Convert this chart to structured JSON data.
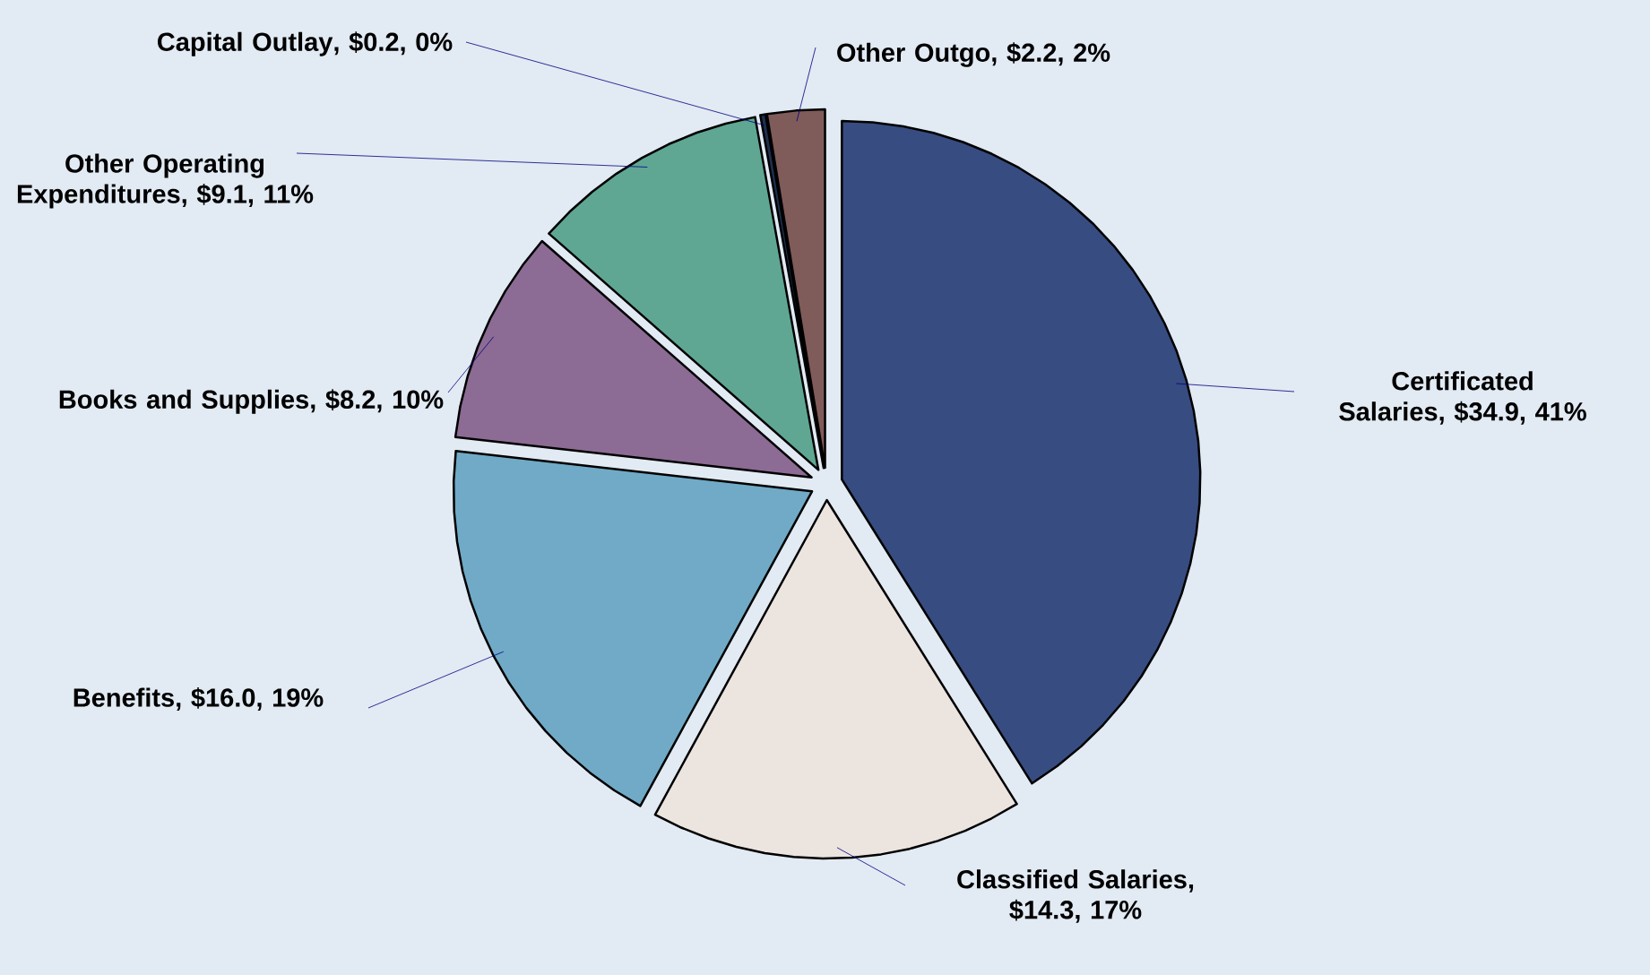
{
  "chart_data": {
    "type": "pie",
    "categories": [
      "Certificated Salaries",
      "Classified Salaries",
      "Benefits",
      "Books and Supplies",
      "Other Operating Expenditures",
      "Capital Outlay",
      "Other Outgo"
    ],
    "values": [
      34.9,
      14.3,
      16.0,
      8.2,
      9.1,
      0.2,
      2.2
    ],
    "colors": [
      "#374c80",
      "#ebe4df",
      "#70aac6",
      "#8c6b94",
      "#5fa793",
      "#1f2f4f",
      "#7f5b5a"
    ],
    "value_labels": [
      ", $34.9, 41%",
      ", $14.3, 17%",
      ", $16.0, 19%",
      ", $8.2, 10%",
      ", $9.1, 11%",
      ", $0.2, 0%",
      ", $2.2, 2%"
    ]
  }
}
